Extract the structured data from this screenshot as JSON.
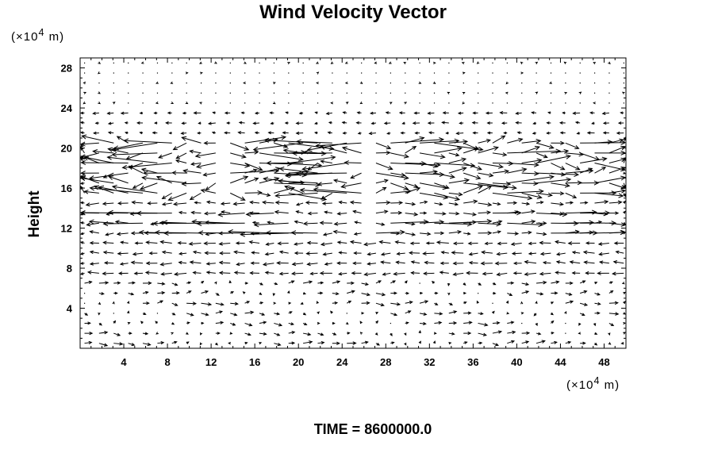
{
  "chart_data": {
    "type": "vector-field",
    "title": "Wind Velocity Vector",
    "xlabel": "",
    "ylabel": "Height",
    "x_unit": "(×10",
    "y_unit": "(×10",
    "unit_exponent": "4",
    "unit_suffix": " m)",
    "xlim": [
      0,
      50
    ],
    "ylim": [
      0,
      29
    ],
    "x_ticks": [
      "4",
      "8",
      "12",
      "16",
      "20",
      "24",
      "28",
      "32",
      "36",
      "40",
      "44",
      "48"
    ],
    "y_ticks": [
      "4",
      "8",
      "12",
      "16",
      "20",
      "24",
      "28"
    ],
    "x_tick_values": [
      4,
      8,
      12,
      16,
      20,
      24,
      28,
      32,
      36,
      40,
      44,
      48
    ],
    "y_tick_values": [
      4,
      8,
      12,
      16,
      20,
      24,
      28
    ],
    "grid": false,
    "annotations": [
      "TIME = 8600000.0"
    ]
  },
  "footer": {
    "time_label": "TIME = 8600000.0"
  }
}
